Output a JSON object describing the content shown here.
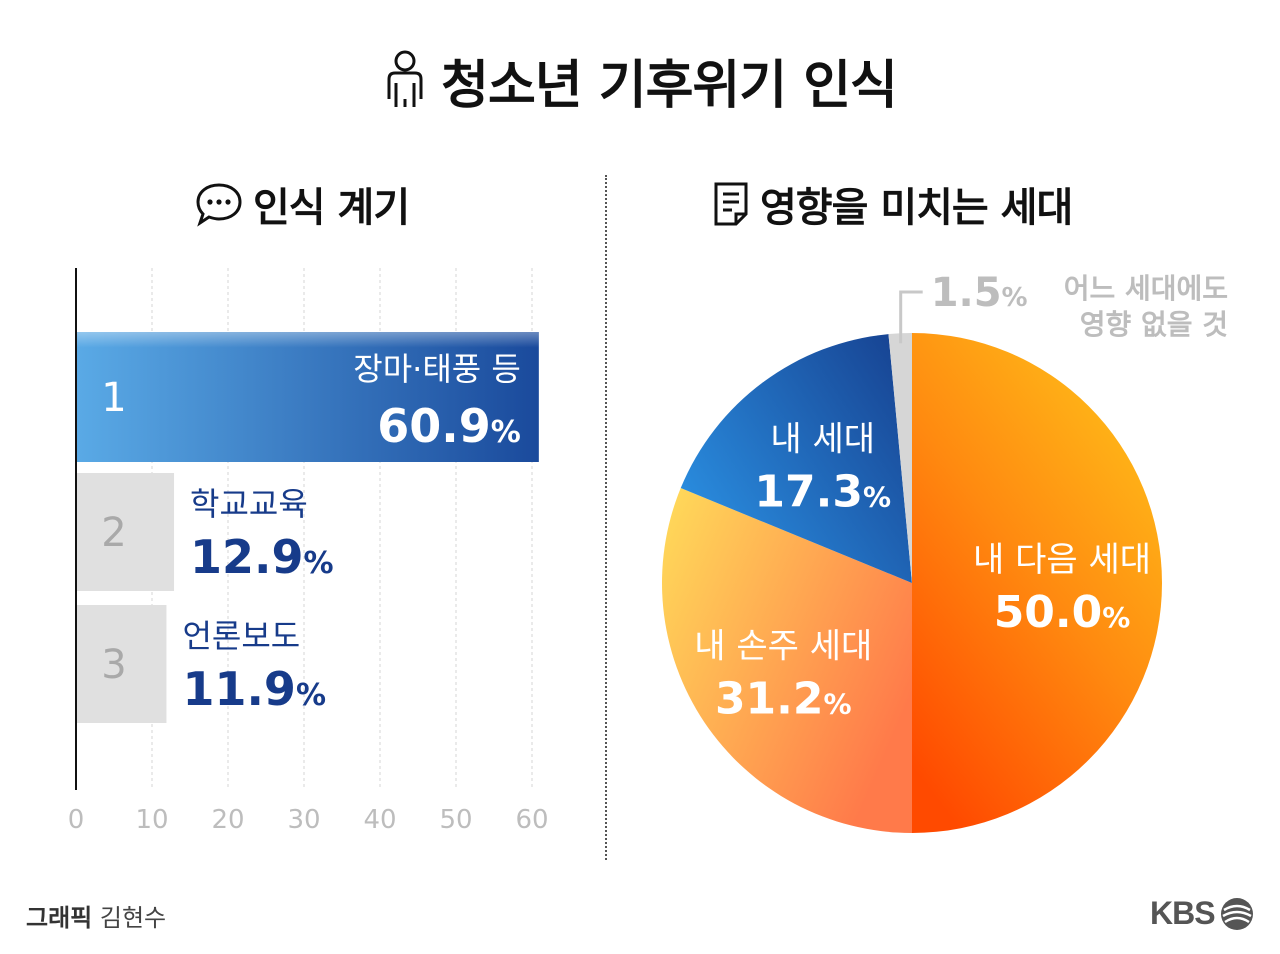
{
  "title": "청소년 기후위기 인식",
  "left_section_title": "인식 계기",
  "right_section_title": "영향을 미치는 세대",
  "credit_label": "그래픽",
  "credit_name": "김현수",
  "logo_text": "KBS",
  "icons": {
    "title": "person-icon",
    "left": "speech-bubble-icon",
    "right": "document-icon",
    "logo": "kbs-logo-icon"
  },
  "colors": {
    "bar_top_start": "#5aaae6",
    "bar_top_end": "#1a4a9c",
    "bar_other": "#e0e0e0",
    "label_blue": "#173b8a",
    "slice_next": "#ff7a10",
    "slice_my": "#1a5bb0",
    "slice_grand": "#ffa85a",
    "slice_none": "#d6d6d6"
  },
  "chart_data": [
    {
      "type": "bar",
      "orientation": "horizontal",
      "title": "인식 계기",
      "unit": "%",
      "xlim": [
        0,
        60
      ],
      "ticks": [
        0,
        10,
        20,
        30,
        40,
        50,
        60
      ],
      "grid": true,
      "categories": [
        "장마·태풍 등",
        "학교교육",
        "언론보도"
      ],
      "ranks": [
        "1",
        "2",
        "3"
      ],
      "values": [
        60.9,
        12.9,
        11.9
      ]
    },
    {
      "type": "pie",
      "title": "영향을 미치는 세대",
      "unit": "%",
      "slices": [
        {
          "label": "내 다음 세대",
          "value": 50.0
        },
        {
          "label": "내 손주 세대",
          "value": 31.2
        },
        {
          "label": "내 세대",
          "value": 17.3
        },
        {
          "label": "어느 세대에도 영향 없을 것",
          "label_lines": [
            "어느 세대에도",
            "영향 없을 것"
          ],
          "value": 1.5
        }
      ]
    }
  ]
}
